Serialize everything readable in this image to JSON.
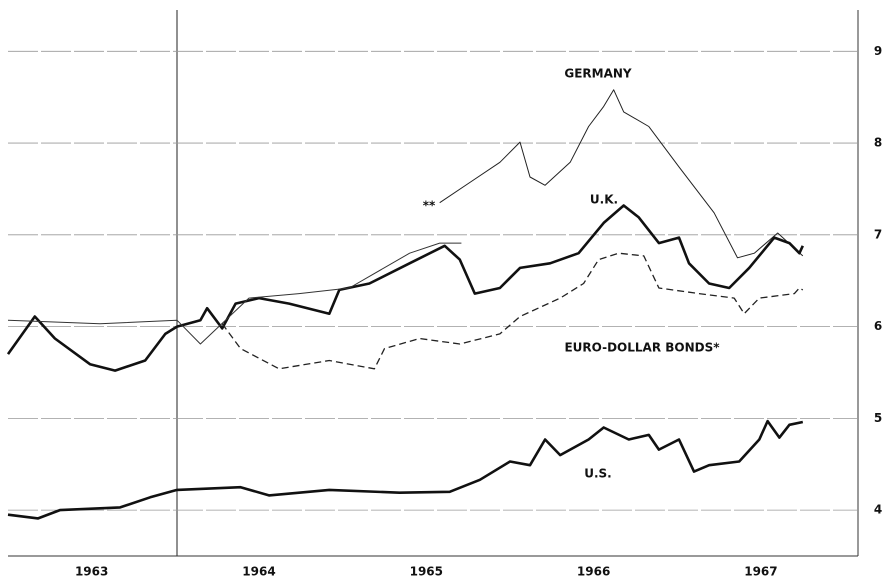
{
  "chart_data": {
    "type": "line",
    "xlim": [
      1963,
      1968.08
    ],
    "xticks": [
      {
        "value": 1963.5,
        "label": "1963"
      },
      {
        "value": 1964.5,
        "label": "1964"
      },
      {
        "value": 1965.5,
        "label": "1965"
      },
      {
        "value": 1966.5,
        "label": "1966"
      },
      {
        "value": 1967.5,
        "label": "1967"
      }
    ],
    "ylim": [
      3.5,
      9.45
    ],
    "yticks": [
      4,
      5,
      6,
      7,
      8,
      9
    ],
    "grid": true,
    "series": [
      {
        "name": "GERMANY",
        "color": "#222",
        "line_width": 1,
        "dashed": false,
        "x": [
          1965.58,
          1965.76,
          1965.94,
          1966.06,
          1966.12,
          1966.21,
          1966.36,
          1966.47,
          1966.56,
          1966.62,
          1966.68,
          1966.83,
          1967.01,
          1967.22,
          1967.36,
          1967.46,
          1967.6,
          1967.75
        ],
        "values": [
          7.35,
          7.57,
          7.79,
          8.01,
          7.63,
          7.54,
          7.79,
          8.18,
          8.4,
          8.58,
          8.34,
          8.18,
          7.74,
          7.24,
          6.75,
          6.8,
          7.02,
          6.77
        ]
      },
      {
        "name": "U.K.",
        "color": "#111",
        "line_width": 2.6,
        "dashed": false,
        "x": [
          1963.0,
          1963.16,
          1963.28,
          1963.49,
          1963.64,
          1963.82,
          1963.94,
          1964.01,
          1964.15,
          1964.19,
          1964.28,
          1964.36,
          1964.5,
          1964.68,
          1964.92,
          1964.98,
          1965.16,
          1965.4,
          1965.61,
          1965.7,
          1965.79,
          1965.94,
          1966.06,
          1966.24,
          1966.41,
          1966.56,
          1966.68,
          1966.77,
          1966.89,
          1967.01,
          1967.07,
          1967.19,
          1967.31,
          1967.43,
          1967.58,
          1967.67,
          1967.73,
          1967.75
        ],
        "values": [
          5.7,
          6.11,
          5.87,
          5.59,
          5.52,
          5.63,
          5.92,
          6.0,
          6.07,
          6.2,
          5.98,
          6.25,
          6.31,
          6.25,
          6.14,
          6.4,
          6.47,
          6.69,
          6.88,
          6.73,
          6.36,
          6.42,
          6.64,
          6.69,
          6.8,
          7.13,
          7.32,
          7.19,
          6.91,
          6.97,
          6.69,
          6.47,
          6.42,
          6.64,
          6.97,
          6.91,
          6.8,
          6.88
        ]
      },
      {
        "color": "#333",
        "line_width": 1,
        "dashed": false,
        "x": [
          1963.0,
          1963.55,
          1964.01,
          1964.15,
          1964.44,
          1964.74,
          1965.04,
          1965.4,
          1965.58,
          1965.71
        ],
        "values": [
          6.07,
          6.03,
          6.07,
          5.81,
          6.31,
          6.36,
          6.42,
          6.8,
          6.91,
          6.91
        ]
      },
      {
        "name": "EURO-DOLLAR BONDS*",
        "color": "#222",
        "line_width": 1.3,
        "dashed": true,
        "x": [
          1964.28,
          1964.39,
          1964.62,
          1964.92,
          1965.19,
          1965.25,
          1965.46,
          1965.7,
          1965.94,
          1966.06,
          1966.3,
          1966.44,
          1966.53,
          1966.65,
          1966.8,
          1966.89,
          1967.13,
          1967.34,
          1967.4,
          1967.49,
          1967.7,
          1967.73,
          1967.75
        ],
        "values": [
          6.03,
          5.76,
          5.54,
          5.63,
          5.54,
          5.76,
          5.87,
          5.81,
          5.92,
          6.11,
          6.31,
          6.47,
          6.73,
          6.8,
          6.77,
          6.42,
          6.36,
          6.31,
          6.14,
          6.31,
          6.36,
          6.42,
          6.4
        ]
      },
      {
        "name": "U.S.",
        "color": "#111",
        "line_width": 2.6,
        "dashed": false,
        "x": [
          1963.0,
          1963.18,
          1963.31,
          1963.67,
          1963.85,
          1964.01,
          1964.39,
          1964.56,
          1964.92,
          1965.34,
          1965.64,
          1965.82,
          1966.0,
          1966.12,
          1966.21,
          1966.3,
          1966.47,
          1966.56,
          1966.71,
          1966.83,
          1966.89,
          1967.01,
          1967.1,
          1967.19,
          1967.37,
          1967.49,
          1967.54,
          1967.61,
          1967.67,
          1967.75
        ],
        "values": [
          3.95,
          3.91,
          4.0,
          4.03,
          4.14,
          4.22,
          4.25,
          4.16,
          4.22,
          4.19,
          4.2,
          4.33,
          4.53,
          4.49,
          4.77,
          4.6,
          4.77,
          4.9,
          4.77,
          4.82,
          4.66,
          4.77,
          4.42,
          4.49,
          4.53,
          4.77,
          4.97,
          4.79,
          4.93,
          4.96
        ]
      }
    ],
    "annotations": [
      "**"
    ]
  }
}
